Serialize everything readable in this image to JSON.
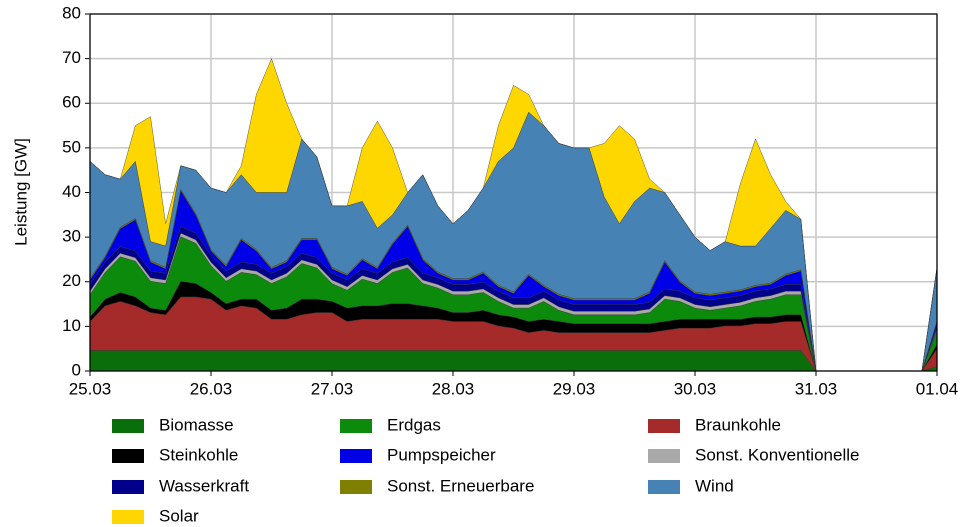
{
  "chart_data": {
    "type": "stacked_area",
    "ylabel": "Leistung [GW]",
    "categories": [
      "25.03",
      null,
      null,
      null,
      null,
      null,
      null,
      null,
      "26.03",
      null,
      null,
      null,
      null,
      null,
      null,
      null,
      "27.03",
      null,
      null,
      null,
      null,
      null,
      null,
      null,
      "28.03",
      null,
      null,
      null,
      null,
      null,
      null,
      null,
      "29.03",
      null,
      null,
      null,
      null,
      null,
      null,
      null,
      "30.03",
      null,
      null,
      null,
      null,
      null,
      null,
      null,
      "31.03",
      null,
      null,
      null,
      null,
      null,
      null,
      null,
      "01.04"
    ],
    "ylim": [
      0,
      80
    ],
    "yticks": [
      0,
      10,
      20,
      30,
      40,
      50,
      60,
      70,
      80
    ],
    "grid": true,
    "series": [
      {
        "name": "Biomasse",
        "color": "#0a6e0a",
        "values": [
          4.6,
          4.6,
          4.6,
          4.6,
          4.6,
          4.6,
          4.6,
          4.6,
          4.6,
          4.6,
          4.6,
          4.6,
          4.6,
          4.6,
          4.6,
          4.6,
          4.6,
          4.6,
          4.6,
          4.6,
          4.6,
          4.6,
          4.6,
          4.6,
          4.6,
          4.6,
          4.6,
          4.6,
          4.6,
          4.6,
          4.6,
          4.6,
          4.6,
          4.6,
          4.6,
          4.6,
          4.6,
          4.6,
          4.6,
          4.6,
          4.6,
          4.6,
          4.6,
          4.6,
          4.6,
          4.6,
          4.6,
          4.6,
          0,
          null,
          null,
          null,
          null,
          null,
          null,
          0,
          1
        ]
      },
      {
        "name": "Braunkohle",
        "color": "#a52a2a",
        "values": [
          6.5,
          10,
          11,
          10,
          8.5,
          8,
          12,
          12,
          11.5,
          9,
          10,
          9.5,
          7,
          7,
          8,
          8.5,
          8.5,
          6.5,
          7,
          7,
          7,
          7,
          7,
          7,
          6.5,
          6.5,
          6.5,
          5.5,
          5,
          4,
          4.5,
          4,
          4,
          4,
          4,
          4,
          4,
          4,
          4.5,
          5,
          5,
          5,
          5.5,
          5.5,
          6,
          6,
          6.5,
          6.5,
          0,
          null,
          null,
          null,
          null,
          null,
          null,
          0,
          4
        ]
      },
      {
        "name": "Steinkohle",
        "color": "#000000",
        "values": [
          1,
          1.5,
          2,
          2,
          1,
          1,
          3.5,
          3,
          1.5,
          1.5,
          1.5,
          2,
          2,
          2.5,
          3.5,
          3,
          2.5,
          3,
          3,
          3,
          3.5,
          3.5,
          3,
          2.5,
          2,
          2,
          2.5,
          2.5,
          2.5,
          2.5,
          2.5,
          2.5,
          2,
          2,
          2,
          2,
          2,
          2,
          2,
          2,
          2,
          2,
          1.5,
          1.5,
          1.5,
          1.5,
          1.5,
          1.5,
          0,
          null,
          null,
          null,
          null,
          null,
          null,
          0,
          1
        ]
      },
      {
        "name": "Erdgas",
        "color": "#0b8a0b",
        "values": [
          5,
          6,
          8,
          8,
          6,
          6,
          10,
          9,
          6,
          5,
          6,
          5.5,
          6,
          7,
          8,
          7,
          4,
          4,
          6,
          5,
          7,
          8,
          5,
          4.5,
          4,
          4,
          4,
          3,
          2,
          3,
          4,
          2.5,
          2,
          2,
          2,
          2,
          2,
          2.5,
          5,
          4,
          2.5,
          2,
          2.5,
          3,
          3.5,
          4,
          4.5,
          4.5,
          0,
          null,
          null,
          null,
          null,
          null,
          null,
          0,
          3
        ]
      },
      {
        "name": "Sonst. Konventionelle",
        "color": "#a9a9a9",
        "values": [
          0.8,
          0.8,
          0.8,
          0.8,
          0.8,
          0.8,
          0.8,
          0.8,
          0.8,
          0.8,
          0.8,
          0.8,
          0.8,
          0.8,
          0.8,
          0.8,
          0.8,
          0.8,
          0.8,
          0.8,
          0.8,
          0.8,
          0.8,
          0.8,
          0.8,
          0.8,
          0.8,
          0.8,
          0.8,
          0.8,
          0.8,
          0.8,
          0.8,
          0.8,
          0.8,
          0.8,
          0.8,
          0.8,
          0.8,
          0.8,
          0.8,
          0.8,
          0.8,
          0.8,
          0.8,
          0.8,
          0.8,
          0.8,
          0,
          null,
          null,
          null,
          null,
          null,
          null,
          0,
          0.5
        ]
      },
      {
        "name": "Wasserkraft",
        "color": "#00008b",
        "values": [
          1.5,
          1.5,
          1.5,
          1.5,
          1.5,
          1.5,
          1.5,
          1.5,
          1.5,
          1.5,
          1.5,
          1.5,
          1.5,
          1.5,
          1.5,
          1.5,
          1.5,
          1.5,
          1.5,
          1.5,
          1.5,
          1.5,
          1.5,
          1.5,
          1.5,
          1.5,
          1.5,
          1.5,
          1.5,
          1.5,
          1.5,
          1.5,
          1.5,
          1.5,
          1.5,
          1.5,
          1.5,
          1.5,
          1.5,
          1.5,
          1.5,
          1.5,
          1.5,
          1.5,
          1.5,
          1.5,
          1.5,
          1.5,
          0,
          null,
          null,
          null,
          null,
          null,
          null,
          0,
          0.5
        ]
      },
      {
        "name": "Pumpspeicher",
        "color": "#0000e6",
        "values": [
          1,
          1,
          4,
          7,
          2,
          1,
          8,
          4,
          1,
          1,
          5,
          3,
          1,
          1,
          3,
          4,
          1,
          1,
          2,
          1,
          4,
          7,
          3,
          1,
          1,
          1,
          2,
          1,
          1,
          5,
          1,
          1,
          1,
          1,
          1,
          1,
          1,
          2,
          6,
          2,
          1,
          1,
          1,
          1,
          1,
          1,
          2,
          3,
          0,
          null,
          null,
          null,
          null,
          null,
          null,
          0,
          1
        ]
      },
      {
        "name": "Sonst. Erneuerbare",
        "color": "#808000",
        "values": [
          0.3,
          0.3,
          0.3,
          0.3,
          0.3,
          0.3,
          0.3,
          0.3,
          0.3,
          0.3,
          0.3,
          0.3,
          0.3,
          0.3,
          0.3,
          0.3,
          0.3,
          0.3,
          0.3,
          0.3,
          0.3,
          0.3,
          0.3,
          0.3,
          0.3,
          0.3,
          0.3,
          0.3,
          0.3,
          0.3,
          0.3,
          0.3,
          0.3,
          0.3,
          0.3,
          0.3,
          0.3,
          0.3,
          0.3,
          0.3,
          0.3,
          0.3,
          0.3,
          0.3,
          0.3,
          0.3,
          0.3,
          0.3,
          0,
          null,
          null,
          null,
          null,
          null,
          null,
          0,
          0.2
        ]
      },
      {
        "name": "Wind",
        "color": "#4682b4",
        "values": [
          26.3,
          18.3,
          10.8,
          12.8,
          4.3,
          4.8,
          5.3,
          9.8,
          13.8,
          16.3,
          14.3,
          12.8,
          16.8,
          15.3,
          22.3,
          18.3,
          13.8,
          15.3,
          12.8,
          8.8,
          6.3,
          7.3,
          18.8,
          14.8,
          12.3,
          15.3,
          18.8,
          27.8,
          32.3,
          36.3,
          35.8,
          33.8,
          33.8,
          33.8,
          22.8,
          16.8,
          21.8,
          23.3,
          15.3,
          14.8,
          12.3,
          9.8,
          11.3,
          9.8,
          8.8,
          12.3,
          14.3,
          11.3,
          0,
          null,
          null,
          null,
          null,
          null,
          null,
          0,
          12
        ]
      },
      {
        "name": "Solar",
        "color": "#ffd700",
        "values": [
          0,
          0,
          0,
          8,
          28,
          5,
          0,
          0,
          0,
          0,
          2,
          22,
          30,
          20,
          0,
          0,
          0,
          0,
          12,
          24,
          15,
          0,
          0,
          0,
          0,
          0,
          0,
          8,
          14,
          4,
          0,
          0,
          0,
          0,
          12,
          22,
          14,
          2,
          0,
          0,
          0,
          0,
          0,
          14,
          24,
          12,
          2,
          0,
          0,
          null,
          null,
          null,
          null,
          null,
          null,
          0,
          0
        ]
      }
    ]
  }
}
